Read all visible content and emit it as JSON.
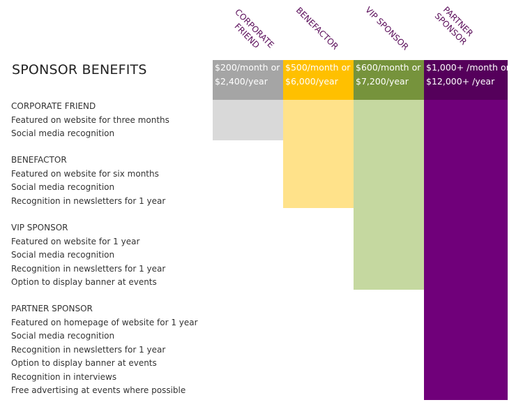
{
  "title": "SPONSOR BENEFITS",
  "colors": {
    "corporate_header": "#a5a5a5",
    "corporate_fill": "#d9d9d9",
    "benefactor_header": "#ffc000",
    "benefactor_fill": "#ffe28a",
    "vip_header": "#76933c",
    "vip_fill": "#c5d8a0",
    "partner_header": "#55005b",
    "partner_fill": "#70007a",
    "tier_label": "#5a0d5a"
  },
  "tiers": [
    {
      "name": "CORPORATE FRIEND",
      "price_month": "$200/month or",
      "price_year": "$2,400/year"
    },
    {
      "name": "BENEFACTOR",
      "price_month": "$500/month or",
      "price_year": "$6,000/year"
    },
    {
      "name": "VIP SPONSOR",
      "price_month": "$600/month or",
      "price_year": "$7,200/year"
    },
    {
      "name": "PARTNER SPONSOR",
      "price_month": "$1,000+ /month or",
      "price_year": "$12,000+ /year"
    }
  ],
  "groups": [
    {
      "heading": "CORPORATE FRIEND",
      "items": [
        "Featured on website for three months",
        "Social media recognition"
      ]
    },
    {
      "heading": "BENEFACTOR",
      "items": [
        "Featured on website for six months",
        "Social media recognition",
        "Recognition in newsletters for 1 year"
      ]
    },
    {
      "heading": "VIP SPONSOR",
      "items": [
        "Featured on website for 1 year",
        "Social media recognition",
        "Recognition in newsletters for 1 year",
        "Option to display banner at events"
      ]
    },
    {
      "heading": "PARTNER SPONSOR",
      "items": [
        "Featured on homepage of website for 1 year",
        "Social media recognition",
        "Recognition in newsletters for 1 year",
        "Option to display banner at events",
        "Recognition in interviews",
        "Free advertising at events where possible"
      ]
    }
  ]
}
